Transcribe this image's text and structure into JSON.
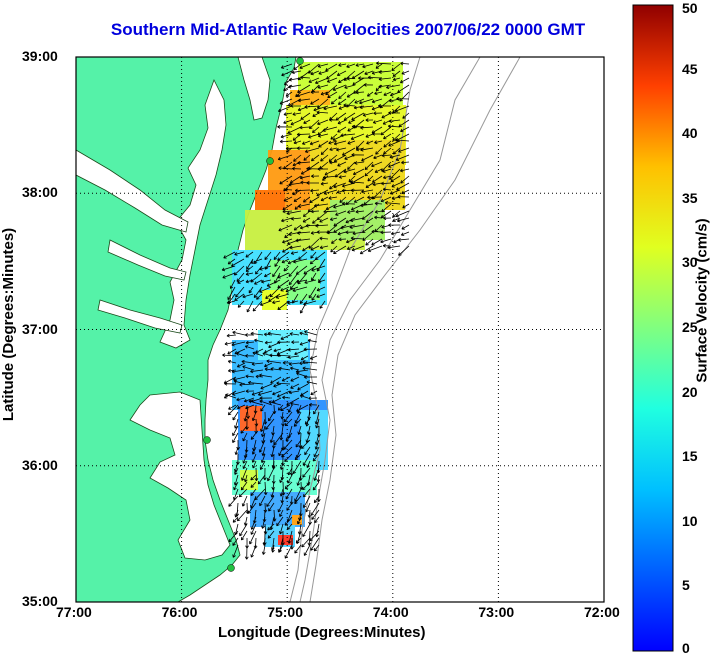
{
  "title": "Southern Mid-Atlantic Raw Velocities 2007/06/22 0000 GMT",
  "map": {
    "xlabel": "Longitude (Degrees:Minutes)",
    "ylabel": "Latitude (Degrees:Minutes)",
    "x_ticks": [
      "77:00",
      "76:00",
      "75:00",
      "74:00",
      "73:00",
      "72:00"
    ],
    "y_ticks": [
      "39:00",
      "38:00",
      "37:00",
      "36:00",
      "35:00"
    ],
    "lon_range": [
      -77,
      -72
    ],
    "lat_range": [
      35,
      39
    ],
    "grid": "dotted",
    "land_color": "#55f2a8",
    "station_color": "#20c040"
  },
  "colorbar": {
    "label": "Surface Velocity (cm/s)",
    "ticks": [
      "50",
      "45",
      "40",
      "35",
      "30",
      "25",
      "20",
      "15",
      "10",
      "5",
      "0"
    ],
    "range": [
      0,
      50
    ],
    "colormap": "jet"
  }
}
